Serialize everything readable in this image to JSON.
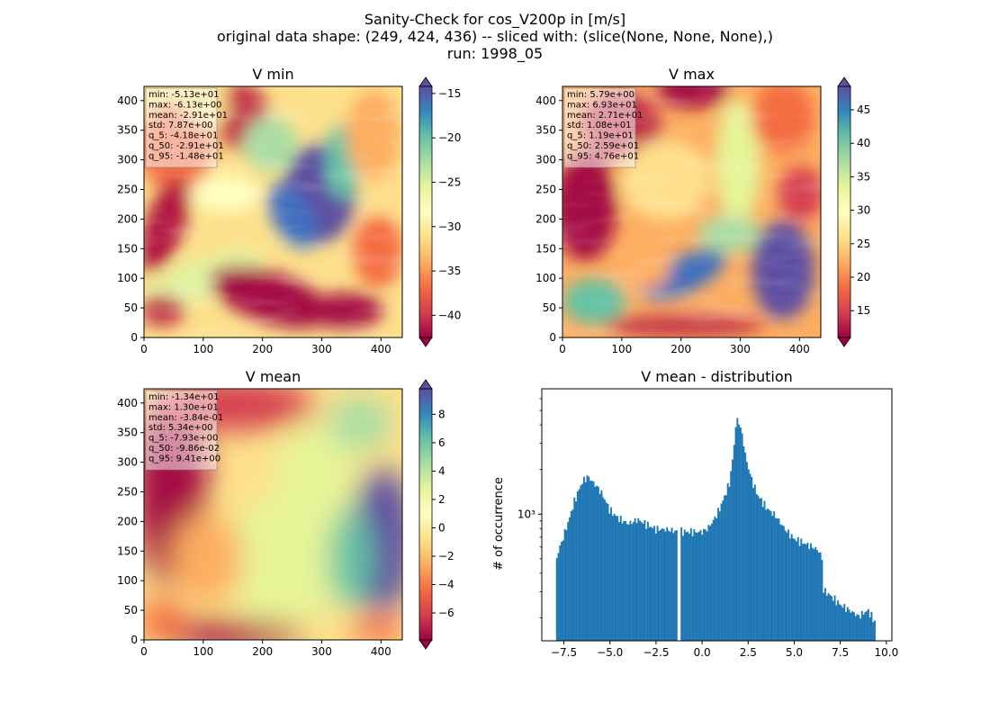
{
  "figure": {
    "title_lines": [
      "Sanity-Check for cos_V200p in [m/s]",
      "original data shape: (249, 424, 436) -- sliced with: (slice(None, None, None),)",
      "run: 1998_05"
    ]
  },
  "chart_data": [
    {
      "type": "heatmap",
      "title": "V min",
      "xlim": [
        0,
        436
      ],
      "ylim": [
        0,
        424
      ],
      "xticks": [
        0,
        100,
        200,
        300,
        400
      ],
      "yticks": [
        0,
        50,
        100,
        150,
        200,
        250,
        300,
        350,
        400
      ],
      "colormap": "Spectral",
      "colorbar": {
        "range": [
          -42.5,
          -14.2
        ],
        "ticks": [
          -40,
          -35,
          -30,
          -25,
          -20,
          -15
        ],
        "labels": [
          "−40",
          "−35",
          "−30",
          "−25",
          "−20",
          "−15"
        ],
        "extend": "both"
      },
      "stats": [
        "min: -5.13e+01",
        "max: -6.13e+00",
        "mean: -2.91e+01",
        "std: 7.87e+00",
        "q_5: -4.18e+01",
        "q_50: -2.91e+01",
        "q_95: -1.48e+01"
      ]
    },
    {
      "type": "heatmap",
      "title": "V max",
      "xlim": [
        0,
        436
      ],
      "ylim": [
        0,
        424
      ],
      "xticks": [
        0,
        100,
        200,
        300,
        400
      ],
      "yticks": [
        0,
        50,
        100,
        150,
        200,
        250,
        300,
        350,
        400
      ],
      "colormap": "Spectral",
      "colorbar": {
        "range": [
          11,
          48.5
        ],
        "ticks": [
          15,
          20,
          25,
          30,
          35,
          40,
          45
        ],
        "labels": [
          "15",
          "20",
          "25",
          "30",
          "35",
          "40",
          "45"
        ],
        "extend": "both"
      },
      "stats": [
        "min: 5.79e+00",
        "max: 6.93e+01",
        "mean: 2.71e+01",
        "std: 1.08e+01",
        "q_5: 1.19e+01",
        "q_50: 2.59e+01",
        "q_95: 4.76e+01"
      ]
    },
    {
      "type": "heatmap",
      "title": "V mean",
      "xlim": [
        0,
        436
      ],
      "ylim": [
        0,
        424
      ],
      "xticks": [
        0,
        100,
        200,
        300,
        400
      ],
      "yticks": [
        0,
        50,
        100,
        150,
        200,
        250,
        300,
        350,
        400
      ],
      "colormap": "Spectral",
      "colorbar": {
        "range": [
          -7.9,
          9.8
        ],
        "ticks": [
          -6,
          -4,
          -2,
          0,
          2,
          4,
          6,
          8
        ],
        "labels": [
          "−6",
          "−4",
          "−2",
          "0",
          "2",
          "4",
          "6",
          "8"
        ],
        "extend": "both"
      },
      "stats": [
        "min: -1.34e+01",
        "max: 1.30e+01",
        "mean: -3.84e-01",
        "std: 5.34e+00",
        "q_5: -7.93e+00",
        "q_50: -9.86e-02",
        "q_95: 9.41e+00"
      ]
    },
    {
      "type": "bar",
      "title": "V mean - distribution",
      "ylabel": "# of occurrence",
      "yscale": "log",
      "xlim": [
        -8.7,
        10.3
      ],
      "ylim": [
        140,
        7000
      ],
      "xticks": [
        -7.5,
        -5.0,
        -2.5,
        0.0,
        2.5,
        5.0,
        7.5,
        10.0
      ],
      "xtick_labels": [
        "−7.5",
        "−5.0",
        "−2.5",
        "0.0",
        "2.5",
        "5.0",
        "7.5",
        "10.0"
      ],
      "yticks_major": [
        1000
      ],
      "ytick_labels": [
        "10³"
      ],
      "color": "#1f77b4",
      "bin_range": [
        -7.93,
        9.41
      ],
      "profile": [
        [
          -7.93,
          480
        ],
        [
          -7.8,
          560
        ],
        [
          -7.5,
          720
        ],
        [
          -7.2,
          940
        ],
        [
          -7.0,
          1150
        ],
        [
          -6.7,
          1450
        ],
        [
          -6.5,
          1650
        ],
        [
          -6.2,
          1800
        ],
        [
          -6.0,
          1680
        ],
        [
          -5.7,
          1530
        ],
        [
          -5.5,
          1420
        ],
        [
          -5.2,
          1200
        ],
        [
          -5.0,
          1060
        ],
        [
          -4.5,
          930
        ],
        [
          -4.0,
          860
        ],
        [
          -3.5,
          920
        ],
        [
          -3.0,
          850
        ],
        [
          -2.5,
          790
        ],
        [
          -2.0,
          790
        ],
        [
          -1.5,
          770
        ],
        [
          -1.2,
          770
        ],
        [
          -1.0,
          760
        ],
        [
          -0.5,
          760
        ],
        [
          0.0,
          760
        ],
        [
          0.3,
          800
        ],
        [
          0.6,
          900
        ],
        [
          0.9,
          1050
        ],
        [
          1.2,
          1300
        ],
        [
          1.5,
          1650
        ],
        [
          1.7,
          2600
        ],
        [
          1.85,
          4300
        ],
        [
          2.0,
          4200
        ],
        [
          2.2,
          3300
        ],
        [
          2.4,
          2300
        ],
        [
          2.7,
          1700
        ],
        [
          3.0,
          1350
        ],
        [
          3.5,
          1100
        ],
        [
          4.0,
          970
        ],
        [
          4.5,
          790
        ],
        [
          5.0,
          680
        ],
        [
          5.5,
          640
        ],
        [
          6.0,
          600
        ],
        [
          6.3,
          570
        ],
        [
          6.5,
          520
        ],
        [
          6.55,
          310
        ],
        [
          7.0,
          280
        ],
        [
          7.5,
          245
        ],
        [
          8.0,
          225
        ],
        [
          8.5,
          205
        ],
        [
          9.0,
          225
        ],
        [
          9.41,
          185
        ]
      ],
      "gap_at": -1.25
    }
  ]
}
